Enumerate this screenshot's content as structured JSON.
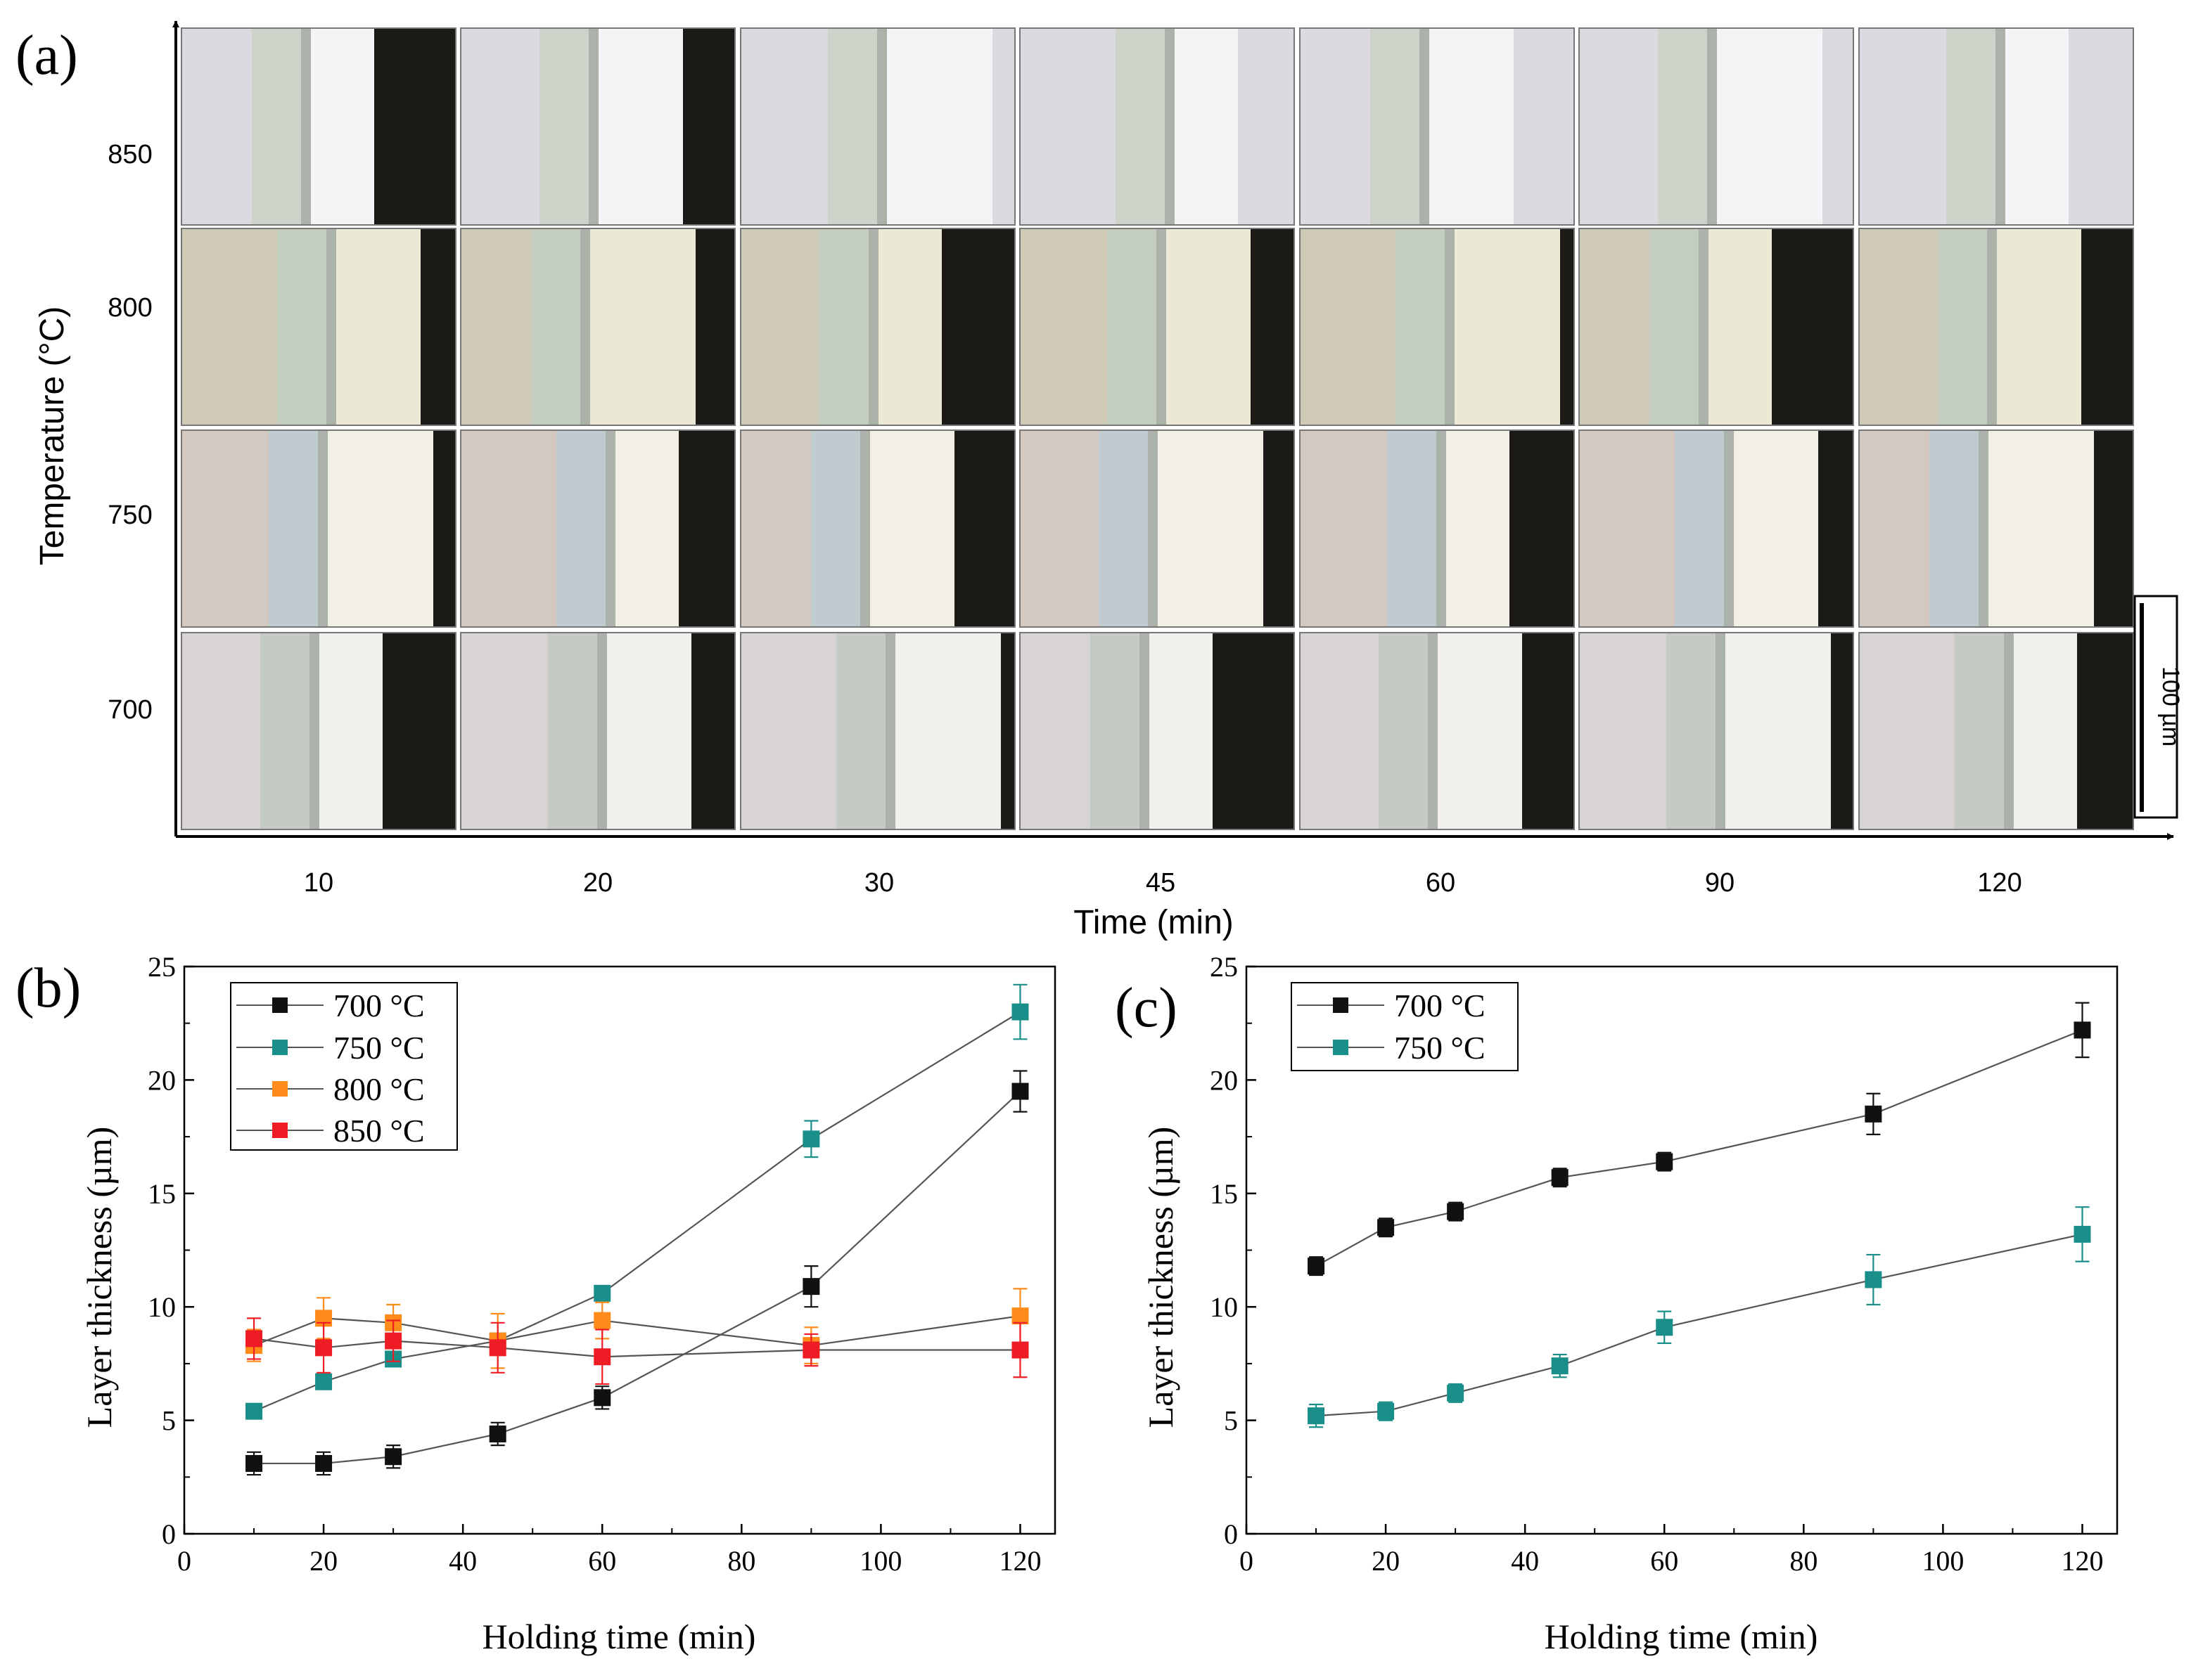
{
  "panel_a": {
    "label": "(a)",
    "ylabel": "Temperature (°C)",
    "xlabel": "Time (min)",
    "rows": [
      "850",
      "800",
      "750",
      "700"
    ],
    "cols": [
      "10",
      "20",
      "30",
      "45",
      "60",
      "90",
      "120"
    ],
    "scale_bar_label": "100 µm",
    "image_description": "optical micrographs of coating cross-sections"
  },
  "colors": {
    "700": "#111111",
    "750": "#1a8f8a",
    "800": "#ff8c1a",
    "850": "#ee1c24",
    "line": "#555555"
  },
  "chart_data": [
    {
      "panel": "(b)",
      "type": "line",
      "xlabel": "Holding time (min)",
      "ylabel": "Layer thickness (µm)",
      "xlim": [
        0,
        125
      ],
      "ylim": [
        0,
        25
      ],
      "xticks": [
        0,
        20,
        40,
        60,
        80,
        100,
        120
      ],
      "yticks": [
        0,
        5,
        10,
        15,
        20,
        25
      ],
      "legend_position": "top-left",
      "series": [
        {
          "name": "700 °C",
          "key": "700",
          "x": [
            10,
            20,
            30,
            45,
            60,
            90,
            120
          ],
          "y": [
            3.1,
            3.1,
            3.4,
            4.4,
            6.0,
            10.9,
            19.5
          ],
          "err": [
            0.5,
            0.5,
            0.5,
            0.5,
            0.5,
            0.9,
            0.9
          ]
        },
        {
          "name": "750 °C",
          "key": "750",
          "x": [
            10,
            20,
            30,
            45,
            60,
            90,
            120
          ],
          "y": [
            5.4,
            6.7,
            7.7,
            8.5,
            10.6,
            17.4,
            23.0
          ],
          "err": [
            0.3,
            0.3,
            0.3,
            0.3,
            0.3,
            0.8,
            1.2
          ]
        },
        {
          "name": "800 °C",
          "key": "800",
          "x": [
            10,
            20,
            30,
            45,
            60,
            90,
            120
          ],
          "y": [
            8.3,
            9.5,
            9.3,
            8.5,
            9.4,
            8.3,
            9.6
          ],
          "err": [
            0.7,
            0.9,
            0.8,
            1.2,
            0.8,
            0.8,
            1.2
          ]
        },
        {
          "name": "850 °C",
          "key": "850",
          "x": [
            10,
            20,
            30,
            45,
            60,
            90,
            120
          ],
          "y": [
            8.6,
            8.2,
            8.5,
            8.2,
            7.8,
            8.1,
            8.1
          ],
          "err": [
            0.9,
            1.1,
            0.9,
            1.1,
            1.2,
            0.7,
            1.2
          ]
        }
      ]
    },
    {
      "panel": "(c)",
      "type": "line",
      "xlabel": "Holding time (min)",
      "ylabel": "Layer thickness (µm)",
      "xlim": [
        0,
        125
      ],
      "ylim": [
        0,
        25
      ],
      "xticks": [
        0,
        20,
        40,
        60,
        80,
        100,
        120
      ],
      "yticks": [
        0,
        5,
        10,
        15,
        20,
        25
      ],
      "legend_position": "top-left",
      "series": [
        {
          "name": "700 °C",
          "key": "700",
          "x": [
            10,
            20,
            30,
            45,
            60,
            90,
            120
          ],
          "y": [
            11.8,
            13.5,
            14.2,
            15.7,
            16.4,
            18.5,
            22.2
          ],
          "err": [
            0.4,
            0.4,
            0.4,
            0.4,
            0.4,
            0.9,
            1.2
          ]
        },
        {
          "name": "750 °C",
          "key": "750",
          "x": [
            10,
            20,
            30,
            45,
            60,
            90,
            120
          ],
          "y": [
            5.2,
            5.4,
            6.2,
            7.4,
            9.1,
            11.2,
            13.2
          ],
          "err": [
            0.5,
            0.4,
            0.4,
            0.5,
            0.7,
            1.1,
            1.2
          ]
        }
      ]
    }
  ]
}
